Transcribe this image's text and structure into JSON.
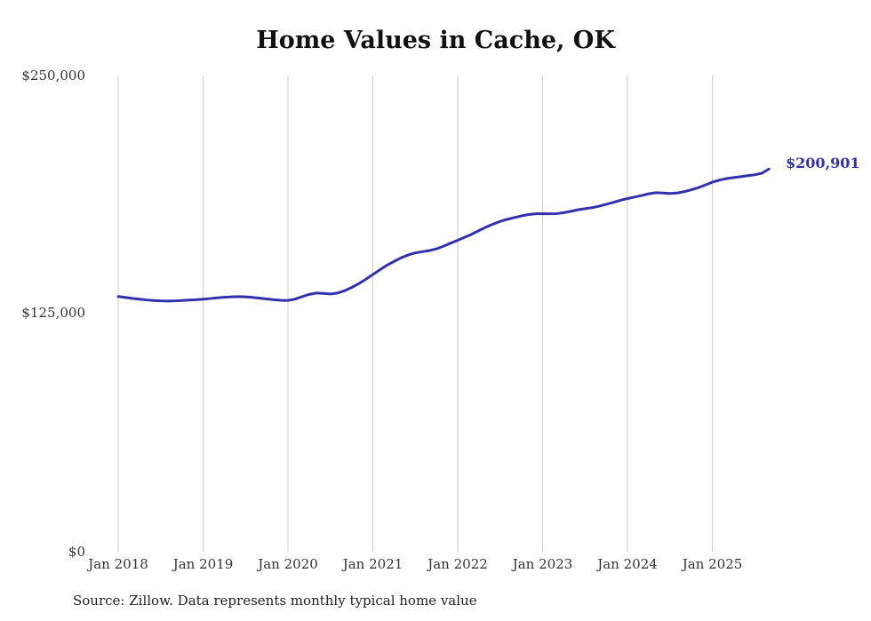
{
  "title": "Home Values in Cache, OK",
  "end_label": "$200,901",
  "source_note": "Source: Zillow. Data represents monthly typical home value",
  "colors": {
    "line": "#3330ad",
    "gridline": "#cccccc",
    "tick_text": "#333333"
  },
  "chart_data": {
    "type": "line",
    "title": "Home Values in Cache, OK",
    "xlabel": "",
    "ylabel": "",
    "ylim": [
      0,
      250000
    ],
    "grid": "vertical",
    "legend": "none",
    "frequency": "monthly",
    "start_month": "Jan 2018",
    "end_month": "Sep 2025",
    "y_ticks": [
      {
        "label": "$250,000",
        "value": 250000
      },
      {
        "label": "$125,000",
        "value": 125000
      },
      {
        "label": "$0",
        "value": 0
      }
    ],
    "x_ticks": [
      {
        "label": "Jan 2018",
        "month_index": 0
      },
      {
        "label": "Jan 2019",
        "month_index": 12
      },
      {
        "label": "Jan 2020",
        "month_index": 24
      },
      {
        "label": "Jan 2021",
        "month_index": 36
      },
      {
        "label": "Jan 2022",
        "month_index": 48
      },
      {
        "label": "Jan 2023",
        "month_index": 60
      },
      {
        "label": "Jan 2024",
        "month_index": 72
      },
      {
        "label": "Jan 2025",
        "month_index": 84
      }
    ],
    "series": [
      {
        "name": "Typical home value",
        "last_value": 200901,
        "last_value_label": "$200,901",
        "values": [
          134000,
          133500,
          133000,
          132600,
          132200,
          131900,
          131700,
          131600,
          131700,
          131900,
          132100,
          132300,
          132600,
          132900,
          133300,
          133600,
          133800,
          133900,
          133800,
          133500,
          133100,
          132700,
          132300,
          132000,
          131900,
          132600,
          133900,
          135100,
          135800,
          135600,
          135300,
          135800,
          137000,
          138700,
          140700,
          143000,
          145500,
          148000,
          150400,
          152400,
          154300,
          155800,
          156900,
          157500,
          158100,
          159000,
          160400,
          162000,
          163500,
          165100,
          166700,
          168600,
          170400,
          172000,
          173400,
          174500,
          175400,
          176300,
          177000,
          177400,
          177500,
          177400,
          177500,
          178000,
          178700,
          179500,
          180100,
          180600,
          181400,
          182400,
          183400,
          184500,
          185400,
          186200,
          187000,
          187900,
          188500,
          188300,
          188100,
          188300,
          189000,
          190000,
          191100,
          192500,
          194000,
          195100,
          195900,
          196400,
          196900,
          197400,
          197900,
          198700,
          200901
        ]
      }
    ]
  }
}
